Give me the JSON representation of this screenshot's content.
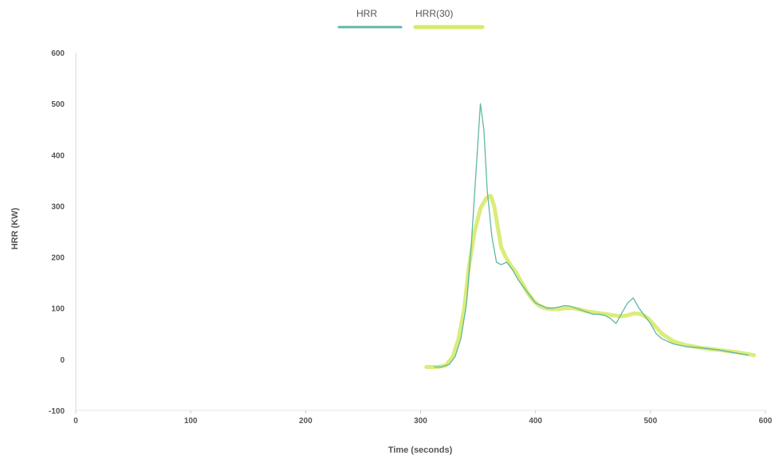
{
  "chart_data": {
    "type": "line",
    "title": "",
    "xlabel": "Time (seconds)",
    "ylabel": "HRR (KW)",
    "xlim": [
      0,
      600
    ],
    "ylim": [
      -100,
      600
    ],
    "x_ticks": [
      0,
      100,
      200,
      300,
      400,
      500,
      600
    ],
    "y_ticks": [
      -100,
      0,
      100,
      200,
      300,
      400,
      500,
      600
    ],
    "x_tick_labels": [
      "0",
      "100",
      "200",
      "300",
      "400",
      "500",
      "600"
    ],
    "y_tick_labels": [
      "-100",
      "0",
      "100",
      "200",
      "300",
      "400",
      "500",
      "600"
    ],
    "grid": false,
    "legend_position": "top-center",
    "series": [
      {
        "name": "HRR",
        "color": "#5fb8a6",
        "x": [
          312,
          318,
          325,
          330,
          335,
          340,
          344,
          348,
          352,
          355,
          358,
          362,
          366,
          370,
          375,
          380,
          385,
          390,
          395,
          400,
          405,
          410,
          415,
          420,
          425,
          430,
          435,
          440,
          445,
          450,
          455,
          460,
          465,
          470,
          475,
          480,
          485,
          490,
          495,
          500,
          505,
          510,
          520,
          530,
          545,
          560,
          575,
          585
        ],
        "y": [
          -15,
          -15,
          -10,
          5,
          40,
          110,
          220,
          360,
          500,
          450,
          330,
          240,
          190,
          185,
          190,
          175,
          155,
          140,
          125,
          110,
          105,
          100,
          100,
          102,
          105,
          104,
          100,
          96,
          92,
          88,
          88,
          86,
          80,
          70,
          90,
          110,
          120,
          100,
          85,
          70,
          50,
          40,
          30,
          25,
          22,
          18,
          12,
          8
        ]
      },
      {
        "name": "HRR(30)",
        "color": "#d7ea6a",
        "x": [
          305,
          315,
          322,
          328,
          333,
          338,
          342,
          347,
          352,
          357,
          361,
          364,
          367,
          370,
          374,
          378,
          383,
          388,
          393,
          398,
          403,
          408,
          414,
          420,
          426,
          432,
          438,
          444,
          450,
          456,
          462,
          468,
          474,
          480,
          486,
          492,
          498,
          504,
          510,
          520,
          530,
          545,
          560,
          575,
          590
        ],
        "y": [
          -15,
          -15,
          -12,
          5,
          40,
          100,
          180,
          250,
          295,
          315,
          320,
          300,
          260,
          220,
          200,
          185,
          170,
          150,
          130,
          115,
          105,
          100,
          98,
          98,
          100,
          100,
          98,
          94,
          92,
          90,
          88,
          86,
          84,
          86,
          90,
          88,
          80,
          65,
          50,
          35,
          28,
          22,
          18,
          14,
          8
        ]
      }
    ],
    "annotations": []
  }
}
